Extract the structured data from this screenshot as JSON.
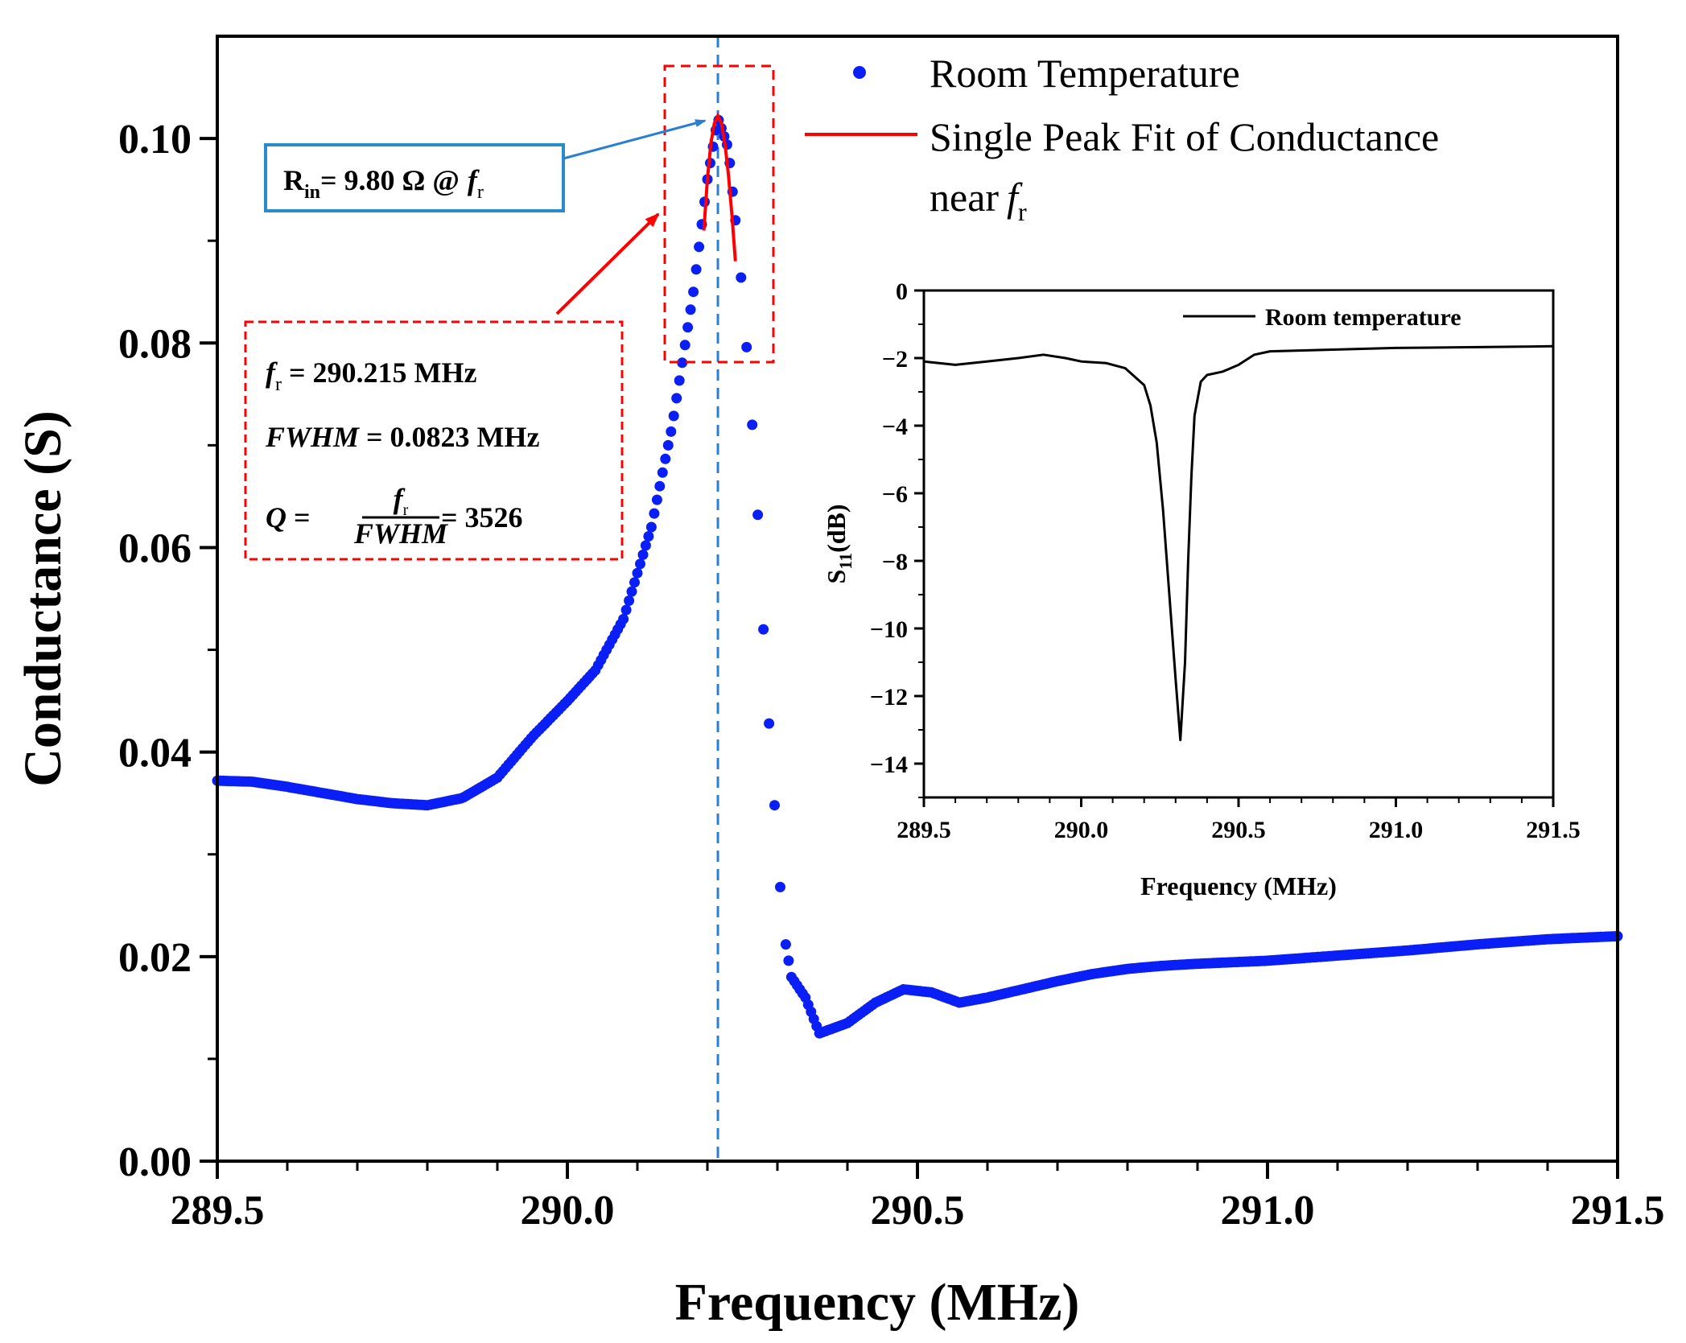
{
  "chart_data": [
    {
      "type": "scatter",
      "title": "",
      "xlabel": "Frequency (MHz)",
      "ylabel": "Conductance (S)",
      "xlim": [
        289.5,
        291.5
      ],
      "ylim": [
        0.0,
        0.11
      ],
      "x_ticks": [
        "289.5",
        "290.0",
        "290.5",
        "291.0",
        "291.5"
      ],
      "y_ticks": [
        "0.00",
        "0.02",
        "0.04",
        "0.06",
        "0.08",
        "0.10"
      ],
      "legend": {
        "position": "top-right",
        "entries": [
          "Room Temperature",
          "Single Peak Fit of Conductance",
          "near",
          "r"
        ],
        "entry_main": "f"
      },
      "series": [
        {
          "name": "Room Temperature",
          "style": "markers",
          "color": "#0a1ff5",
          "points": [
            [
              289.5,
              0.0372
            ],
            [
              289.55,
              0.0371
            ],
            [
              289.6,
              0.0366
            ],
            [
              289.65,
              0.036
            ],
            [
              289.7,
              0.0354
            ],
            [
              289.75,
              0.035
            ],
            [
              289.8,
              0.0348
            ],
            [
              289.85,
              0.0355
            ],
            [
              289.9,
              0.0375
            ],
            [
              289.95,
              0.0415
            ],
            [
              290.0,
              0.045
            ],
            [
              290.04,
              0.048
            ],
            [
              290.08,
              0.053
            ],
            [
              290.12,
              0.062
            ],
            [
              290.15,
              0.072
            ],
            [
              290.18,
              0.085
            ],
            [
              290.2,
              0.096
            ],
            [
              290.215,
              0.102
            ],
            [
              290.23,
              0.099
            ],
            [
              290.24,
              0.092
            ],
            [
              290.25,
              0.085
            ],
            [
              290.26,
              0.076
            ],
            [
              290.27,
              0.066
            ],
            [
              290.28,
              0.052
            ],
            [
              290.285,
              0.044
            ],
            [
              290.29,
              0.042
            ],
            [
              290.3,
              0.03
            ],
            [
              290.31,
              0.022
            ],
            [
              290.32,
              0.018
            ],
            [
              290.34,
              0.016
            ],
            [
              290.36,
              0.0125
            ],
            [
              290.4,
              0.0135
            ],
            [
              290.44,
              0.0155
            ],
            [
              290.48,
              0.0168
            ],
            [
              290.52,
              0.0165
            ],
            [
              290.56,
              0.0155
            ],
            [
              290.6,
              0.016
            ],
            [
              290.65,
              0.0168
            ],
            [
              290.7,
              0.0176
            ],
            [
              290.75,
              0.0183
            ],
            [
              290.8,
              0.0188
            ],
            [
              290.85,
              0.0191
            ],
            [
              290.9,
              0.0193
            ],
            [
              291.0,
              0.0196
            ],
            [
              291.1,
              0.0201
            ],
            [
              291.2,
              0.0206
            ],
            [
              291.3,
              0.0212
            ],
            [
              291.4,
              0.0217
            ],
            [
              291.5,
              0.022
            ]
          ]
        },
        {
          "name": "Single Peak Fit of Conductance near fr",
          "style": "line",
          "color": "#ff0000",
          "points": [
            [
              290.195,
              0.091
            ],
            [
              290.2,
              0.096
            ],
            [
              290.205,
              0.0995
            ],
            [
              290.21,
              0.1015
            ],
            [
              290.215,
              0.1022
            ],
            [
              290.22,
              0.1015
            ],
            [
              290.225,
              0.0995
            ],
            [
              290.23,
              0.0965
            ],
            [
              290.235,
              0.0925
            ],
            [
              290.24,
              0.088
            ]
          ]
        }
      ],
      "reference_line": {
        "x": 290.215,
        "color": "#2a7fd4",
        "style": "dashed"
      },
      "annotations": {
        "rin": {
          "label": "R",
          "sub": "in",
          "rest": "= 9.80 Ω @",
          "f": "f",
          "fsub": "r"
        },
        "params": {
          "fr_f": "f",
          "fr_sub": "r",
          "fr_text": " = 290.215 MHz",
          "fwhm_name": "FWHM",
          "fwhm_text": " = 0.0823 MHz",
          "q_name": "Q",
          "q_eq": " = ",
          "q_num_f": "f",
          "q_num_sub": "r",
          "q_den": "FWHM",
          "q_result": " = 3526"
        }
      }
    },
    {
      "type": "line",
      "title": "",
      "xlabel": "Frequency (MHz)",
      "ylabel_main": "S",
      "ylabel_sub": "11",
      "ylabel_unit": "(dB)",
      "xlim": [
        289.5,
        291.5
      ],
      "ylim": [
        -15,
        0
      ],
      "x_ticks": [
        "289.5",
        "290.0",
        "290.5",
        "291.0",
        "291.5"
      ],
      "y_ticks": [
        "0",
        "-2",
        "-4",
        "-6",
        "-8",
        "-10",
        "-12",
        "-14"
      ],
      "legend": {
        "position": "top-right",
        "entries": [
          "Room temperature"
        ]
      },
      "series": [
        {
          "name": "Room temperature",
          "color": "#000000",
          "points": [
            [
              289.5,
              -2.1
            ],
            [
              289.6,
              -2.2
            ],
            [
              289.7,
              -2.1
            ],
            [
              289.8,
              -2.0
            ],
            [
              289.88,
              -1.9
            ],
            [
              289.95,
              -2.0
            ],
            [
              290.0,
              -2.1
            ],
            [
              290.08,
              -2.15
            ],
            [
              290.14,
              -2.3
            ],
            [
              290.2,
              -2.8
            ],
            [
              290.22,
              -3.4
            ],
            [
              290.24,
              -4.5
            ],
            [
              290.26,
              -6.5
            ],
            [
              290.28,
              -9.0
            ],
            [
              290.3,
              -11.5
            ],
            [
              290.315,
              -13.3
            ],
            [
              290.33,
              -11.0
            ],
            [
              290.34,
              -8.0
            ],
            [
              290.35,
              -5.5
            ],
            [
              290.36,
              -3.7
            ],
            [
              290.38,
              -2.7
            ],
            [
              290.4,
              -2.5
            ],
            [
              290.45,
              -2.4
            ],
            [
              290.5,
              -2.2
            ],
            [
              290.55,
              -1.9
            ],
            [
              290.6,
              -1.8
            ],
            [
              290.8,
              -1.75
            ],
            [
              291.0,
              -1.7
            ],
            [
              291.2,
              -1.68
            ],
            [
              291.5,
              -1.65
            ]
          ]
        }
      ]
    }
  ]
}
